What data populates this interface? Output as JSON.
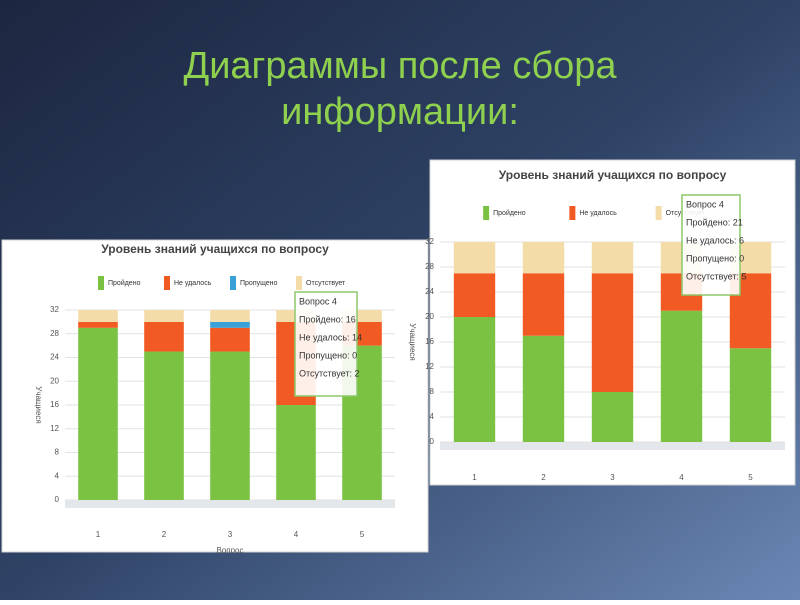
{
  "slide": {
    "title_lines": [
      "Диаграммы после сбора",
      "информации:"
    ]
  },
  "chart_data": [
    {
      "type": "bar",
      "stacked": true,
      "title": "Уровень знаний учащихся по вопросу",
      "categories": [
        "1",
        "2",
        "3",
        "4",
        "5"
      ],
      "series": [
        {
          "name": "Пройдено",
          "color": "#7cc242",
          "values": [
            29,
            25,
            25,
            16,
            26
          ]
        },
        {
          "name": "Не удалось",
          "color": "#f15a22",
          "values": [
            1,
            5,
            4,
            14,
            4
          ]
        },
        {
          "name": "Пропущено",
          "color": "#3aa0d8",
          "values": [
            0,
            0,
            1,
            0,
            0
          ]
        },
        {
          "name": "Отсутствует",
          "color": "#f3dca8",
          "values": [
            2,
            2,
            2,
            2,
            2
          ]
        }
      ],
      "ylim": [
        0,
        32
      ],
      "yticks": [
        0,
        4,
        8,
        12,
        16,
        20,
        24,
        28,
        32
      ],
      "grid": true,
      "y_label": "Учащиеся",
      "x_label": "Вопрос",
      "tooltip": {
        "title": "Вопрос 4",
        "lines": [
          "Пройдено: 16",
          "Не удалось: 14",
          "Пропущено: 0",
          "Отсутствует: 2"
        ]
      }
    },
    {
      "type": "bar",
      "stacked": true,
      "title": "Уровень знаний учащихся по вопросу",
      "categories": [
        "1",
        "2",
        "3",
        "4",
        "5"
      ],
      "series": [
        {
          "name": "Пройдено",
          "color": "#7cc242",
          "values": [
            20,
            17,
            8,
            21,
            15
          ]
        },
        {
          "name": "Не удалось",
          "color": "#f15a22",
          "values": [
            7,
            10,
            19,
            6,
            12
          ]
        },
        {
          "name": "Отсутствует",
          "color": "#f3dca8",
          "values": [
            5,
            5,
            5,
            5,
            5
          ]
        }
      ],
      "ylim": [
        0,
        32
      ],
      "yticks": [
        0,
        4,
        8,
        12,
        16,
        20,
        24,
        28,
        32
      ],
      "grid": true,
      "y_label": "Учащиеся",
      "tooltip": {
        "title": "Вопрос 4",
        "lines": [
          "Пройдено: 21",
          "Не удалось: 6",
          "Пропущено: 0",
          "Отсутствует: 5"
        ]
      }
    }
  ]
}
